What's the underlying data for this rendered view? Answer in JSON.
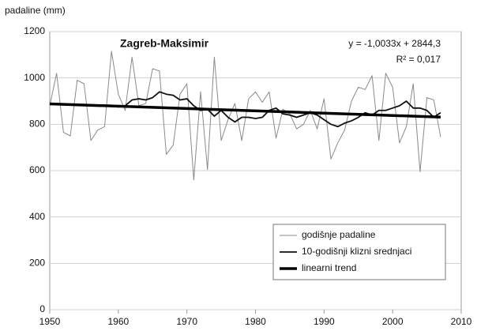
{
  "chart_data": {
    "type": "line",
    "title": "Zagreb-Maksimir",
    "y_label": "padaline (mm)",
    "annotations": [
      "y = -1,0033x + 2844,3",
      "R² = 0,017"
    ],
    "x": [
      1950,
      1951,
      1952,
      1953,
      1954,
      1955,
      1956,
      1957,
      1958,
      1959,
      1960,
      1961,
      1962,
      1963,
      1964,
      1965,
      1966,
      1967,
      1968,
      1969,
      1970,
      1971,
      1972,
      1973,
      1974,
      1975,
      1976,
      1977,
      1978,
      1979,
      1980,
      1981,
      1982,
      1983,
      1984,
      1985,
      1986,
      1987,
      1988,
      1989,
      1990,
      1991,
      1992,
      1993,
      1994,
      1995,
      1996,
      1997,
      1998,
      1999,
      2000,
      2001,
      2002,
      2003,
      2004,
      2005,
      2006,
      2007
    ],
    "series": [
      {
        "name": "godišnje padaline",
        "color": "#8a8a8a",
        "width": 1,
        "values": [
          880,
          1020,
          765,
          750,
          990,
          975,
          730,
          775,
          790,
          1115,
          930,
          860,
          1090,
          880,
          890,
          1040,
          1030,
          670,
          710,
          930,
          975,
          560,
          940,
          605,
          1090,
          730,
          820,
          890,
          730,
          910,
          940,
          895,
          940,
          740,
          865,
          845,
          780,
          800,
          860,
          780,
          910,
          650,
          720,
          775,
          900,
          960,
          950,
          1010,
          730,
          1020,
          960,
          720,
          790,
          975,
          595,
          915,
          905,
          745
        ]
      },
      {
        "name": "10-godišnji klizni srednjaci",
        "color": "#111111",
        "width": 1.8,
        "values": [
          null,
          null,
          null,
          null,
          null,
          null,
          null,
          null,
          null,
          880,
          875,
          880,
          905,
          910,
          905,
          915,
          940,
          930,
          925,
          905,
          910,
          880,
          860,
          865,
          835,
          860,
          830,
          810,
          830,
          830,
          825,
          830,
          860,
          870,
          845,
          840,
          830,
          840,
          850,
          840,
          820,
          800,
          790,
          805,
          815,
          830,
          850,
          840,
          860,
          860,
          870,
          880,
          900,
          870,
          870,
          860,
          830,
          850
        ]
      },
      {
        "name": "linearni trend",
        "color": "#000000",
        "width": 3.5,
        "x": [
          1950,
          2007
        ],
        "values": [
          888,
          831
        ]
      }
    ],
    "xlim": [
      1950,
      2010
    ],
    "xticks": [
      1950,
      1960,
      1970,
      1980,
      1990,
      2000,
      2010
    ],
    "ylim": [
      0,
      1200
    ],
    "yticks": [
      0,
      200,
      400,
      600,
      800,
      1000,
      1200
    ],
    "grid": true,
    "legend_position": "lower right"
  }
}
